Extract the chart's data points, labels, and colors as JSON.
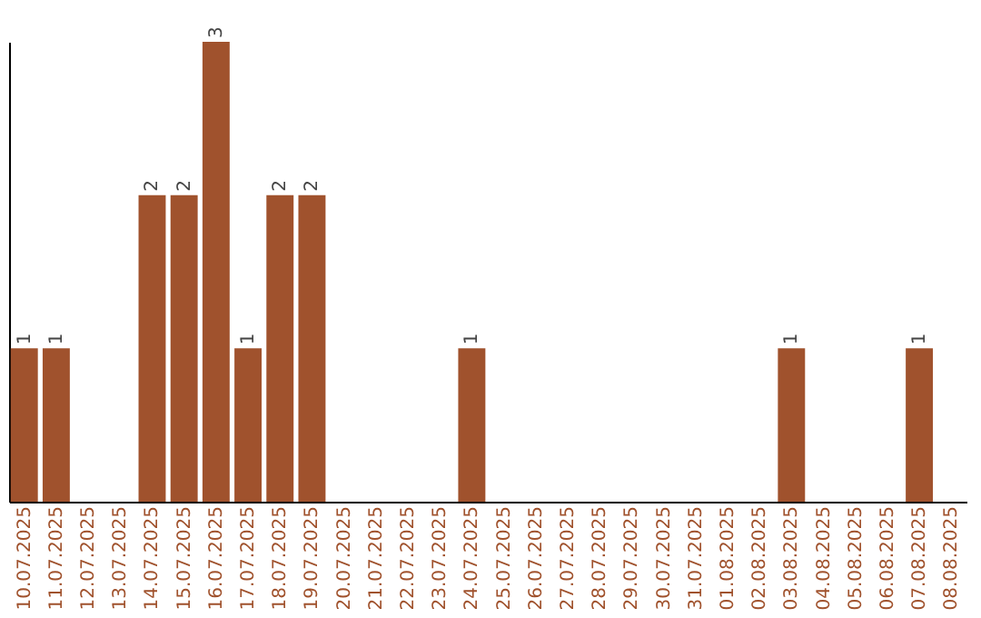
{
  "chart_data": {
    "type": "bar",
    "categories": [
      "10.07.2025",
      "11.07.2025",
      "12.07.2025",
      "13.07.2025",
      "14.07.2025",
      "15.07.2025",
      "16.07.2025",
      "17.07.2025",
      "18.07.2025",
      "19.07.2025",
      "20.07.2025",
      "21.07.2025",
      "22.07.2025",
      "23.07.2025",
      "24.07.2025",
      "25.07.2025",
      "26.07.2025",
      "27.07.2025",
      "28.07.2025",
      "29.07.2025",
      "30.07.2025",
      "31.07.2025",
      "01.08.2025",
      "02.08.2025",
      "03.08.2025",
      "04.08.2025",
      "05.08.2025",
      "06.08.2025",
      "07.08.2025",
      "08.08.2025"
    ],
    "values": [
      1,
      1,
      0,
      0,
      2,
      2,
      3,
      1,
      2,
      2,
      0,
      0,
      0,
      0,
      1,
      0,
      0,
      0,
      0,
      0,
      0,
      0,
      0,
      0,
      1,
      0,
      0,
      0,
      1,
      0
    ],
    "value_labels": [
      "1",
      "1",
      null,
      null,
      "2",
      "2",
      "3",
      "1",
      "2",
      "2",
      null,
      null,
      null,
      null,
      "1",
      null,
      null,
      null,
      null,
      null,
      null,
      null,
      null,
      null,
      "1",
      null,
      null,
      null,
      "1",
      null
    ],
    "color": "#a0522d",
    "tick_labels": "x",
    "grid": false
  }
}
